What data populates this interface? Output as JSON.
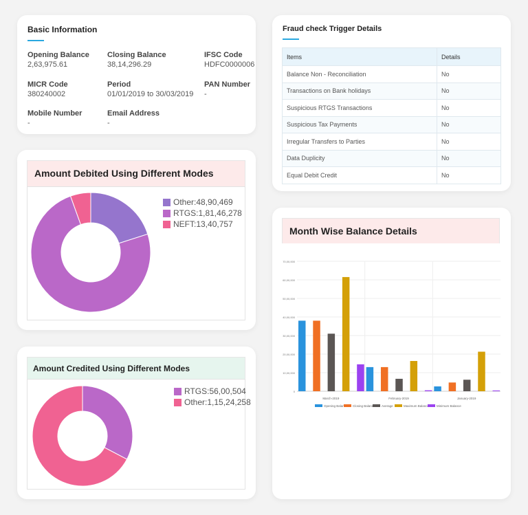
{
  "basic": {
    "title": "Basic Information",
    "fields": [
      {
        "label": "Opening Balance",
        "value": "2,63,975.61"
      },
      {
        "label": "Closing Balance",
        "value": "38,14,296.29"
      },
      {
        "label": "IFSC Code",
        "value": "HDFC0000006"
      },
      {
        "label": "MICR Code",
        "value": "380240002"
      },
      {
        "label": "Period",
        "value": "01/01/2019 to 30/03/2019"
      },
      {
        "label": "PAN Number",
        "value": "-"
      },
      {
        "label": "Mobile Number",
        "value": "-"
      },
      {
        "label": "Email Address",
        "value": "-"
      }
    ]
  },
  "fraud": {
    "title": "Fraud check Trigger Details",
    "headers": [
      "Items",
      "Details"
    ],
    "rows": [
      [
        "Balance Non - Reconciliation",
        "No"
      ],
      [
        "Transactions on Bank holidays",
        "No"
      ],
      [
        "Suspicious RTGS Transactions",
        "No"
      ],
      [
        "Suspicious Tax Payments",
        "No"
      ],
      [
        "Irregular Transfers to Parties",
        "No"
      ],
      [
        "Data Duplicity",
        "No"
      ],
      [
        "Equal Debit Credit",
        "No"
      ]
    ]
  },
  "chart_data": [
    {
      "type": "pie",
      "title": "Amount Debited Using Different Modes",
      "donut": true,
      "legend": "top-right",
      "slices": [
        {
          "name": "Other",
          "label": "Other:48,90,469",
          "value": 4890469,
          "color": "#9575cd"
        },
        {
          "name": "RTGS",
          "label": "RTGS:1,81,46,278",
          "value": 18146278,
          "color": "#ba68c8"
        },
        {
          "name": "NEFT",
          "label": "NEFT:13,40,757",
          "value": 1340757,
          "color": "#f06292"
        }
      ]
    },
    {
      "type": "pie",
      "title": "Amount Credited Using Different Modes",
      "donut": true,
      "legend": "top-right",
      "slices": [
        {
          "name": "RTGS",
          "label": "RTGS:56,00,504",
          "value": 5600504,
          "color": "#ba68c8"
        },
        {
          "name": "Other",
          "label": "Other:1,15,24,258",
          "value": 11524258,
          "color": "#f06292"
        }
      ]
    },
    {
      "type": "bar",
      "title": "Month Wise Balance Details",
      "legend": "bottom",
      "grid": true,
      "ylim": [
        0,
        7000000
      ],
      "yticks": [
        "0",
        "10,00,000",
        "20,00,000",
        "30,00,000",
        "40,00,000",
        "50,00,000",
        "60,00,000",
        "70,00,000"
      ],
      "categories": [
        "March-2019",
        "February-2019",
        "January-2019"
      ],
      "series": [
        {
          "name": "Opening Balance",
          "color": "#2a93dd",
          "values": [
            3800000,
            1300000,
            260000
          ]
        },
        {
          "name": "Closing Balance",
          "color": "#f07024",
          "values": [
            3800000,
            1300000,
            470000
          ]
        },
        {
          "name": "Average",
          "color": "#5b5654",
          "values": [
            3100000,
            670000,
            620000
          ]
        },
        {
          "name": "Maximum Balance",
          "color": "#d4a008",
          "values": [
            6150000,
            1630000,
            2130000
          ]
        },
        {
          "name": "Minimum Balance",
          "color": "#9b42f0",
          "values": [
            1450000,
            50000,
            40000
          ]
        }
      ]
    }
  ]
}
